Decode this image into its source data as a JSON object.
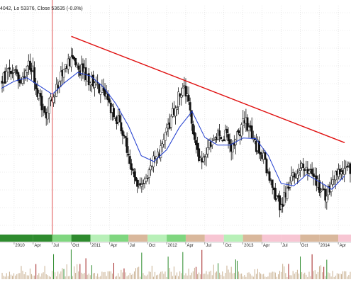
{
  "header": {
    "ohlc_label": "4042, Lo 53376, Close 53635 (-0.8%)"
  },
  "colors": {
    "background": "#ffffff",
    "grid": "#d9d9d9",
    "candle_up": "#1a7a1a",
    "candle_down": "#8b1a1a",
    "moving_average": "#1f3ccf",
    "trendline": "#e01010",
    "marker_line": "#e05050",
    "volume_up": "#2a8a2a",
    "volume_down": "#a02020",
    "volume_neutral": "#c8b090"
  },
  "chart_data": {
    "type": "candlestick",
    "x_tick_labels": [
      "2010",
      "Apr",
      "Jul",
      "Oct",
      "2011",
      "Apr",
      "Jul",
      "Oct",
      "2012",
      "Apr",
      "Jul",
      "Oct",
      "2013",
      "Apr",
      "Jul",
      "Oct",
      "2014",
      "Apr"
    ],
    "x_ticks": [
      "2010-01",
      "2010-04",
      "2010-07",
      "2010-10",
      "2011-01",
      "2011-04",
      "2011-07",
      "2011-10",
      "2012-01",
      "2012-04",
      "2012-07",
      "2012-10",
      "2013-01",
      "2013-04",
      "2013-07",
      "2013-10",
      "2014-01",
      "2014-04"
    ],
    "period": {
      "start": "2009-11",
      "end": "2014-05"
    },
    "price_series": [
      [
        "2009-11",
        68.4
      ],
      [
        "2009-12",
        69.6
      ],
      [
        "2010-01",
        70.5
      ],
      [
        "2010-02",
        68.5
      ],
      [
        "2010-03",
        71.2
      ],
      [
        "2010-04",
        70.0
      ],
      [
        "2010-05",
        65.0
      ],
      [
        "2010-06",
        63.2
      ],
      [
        "2010-07",
        66.0
      ],
      [
        "2010-08",
        68.0
      ],
      [
        "2010-09",
        70.3
      ],
      [
        "2010-10",
        72.5
      ],
      [
        "2010-11",
        70.8
      ],
      [
        "2010-12",
        69.5
      ],
      [
        "2011-01",
        68.4
      ],
      [
        "2011-02",
        68.2
      ],
      [
        "2011-03",
        65.9
      ],
      [
        "2011-04",
        64.4
      ],
      [
        "2011-05",
        62.3
      ],
      [
        "2011-06",
        60.2
      ],
      [
        "2011-07",
        56.4
      ],
      [
        "2011-08",
        52.2
      ],
      [
        "2011-09",
        51.0
      ],
      [
        "2011-10",
        52.9
      ],
      [
        "2011-11",
        56.0
      ],
      [
        "2011-12",
        56.8
      ],
      [
        "2012-01",
        59.5
      ],
      [
        "2012-02",
        63.0
      ],
      [
        "2012-03",
        66.2
      ],
      [
        "2012-04",
        67.0
      ],
      [
        "2012-05",
        61.6
      ],
      [
        "2012-06",
        55.7
      ],
      [
        "2012-07",
        55.5
      ],
      [
        "2012-08",
        58.0
      ],
      [
        "2012-09",
        59.6
      ],
      [
        "2012-10",
        59.5
      ],
      [
        "2012-11",
        57.3
      ],
      [
        "2012-12",
        58.6
      ],
      [
        "2013-01",
        61.7
      ],
      [
        "2013-02",
        60.4
      ],
      [
        "2013-03",
        57.8
      ],
      [
        "2013-04",
        56.1
      ],
      [
        "2013-05",
        52.3
      ],
      [
        "2013-06",
        48.5
      ],
      [
        "2013-07",
        47.6
      ],
      [
        "2013-08",
        50.0
      ],
      [
        "2013-09",
        52.2
      ],
      [
        "2013-10",
        54.1
      ],
      [
        "2013-11",
        53.5
      ],
      [
        "2013-12",
        51.8
      ],
      [
        "2014-01",
        50.6
      ],
      [
        "2014-02",
        49.3
      ],
      [
        "2014-03",
        51.5
      ],
      [
        "2014-04",
        53.4
      ],
      [
        "2014-05",
        53.6
      ]
    ],
    "moving_average": [
      [
        "2009-11",
        67.2
      ],
      [
        "2010-01",
        68.4
      ],
      [
        "2010-03",
        69.0
      ],
      [
        "2010-05",
        67.6
      ],
      [
        "2010-07",
        66.2
      ],
      [
        "2010-09",
        68.2
      ],
      [
        "2010-11",
        69.9
      ],
      [
        "2011-01",
        69.3
      ],
      [
        "2011-03",
        67.5
      ],
      [
        "2011-05",
        64.6
      ],
      [
        "2011-07",
        60.8
      ],
      [
        "2011-09",
        55.8
      ],
      [
        "2011-11",
        54.8
      ],
      [
        "2012-01",
        56.8
      ],
      [
        "2012-03",
        60.6
      ],
      [
        "2012-05",
        63.3
      ],
      [
        "2012-07",
        58.9
      ],
      [
        "2012-09",
        57.6
      ],
      [
        "2012-11",
        57.6
      ],
      [
        "2013-01",
        58.8
      ],
      [
        "2013-03",
        58.7
      ],
      [
        "2013-05",
        55.8
      ],
      [
        "2013-07",
        51.1
      ],
      [
        "2013-09",
        50.7
      ],
      [
        "2013-11",
        52.6
      ],
      [
        "2014-01",
        51.4
      ],
      [
        "2014-03",
        50.1
      ],
      [
        "2014-05",
        52.4
      ]
    ],
    "trendline": [
      [
        "2010-10",
        76.0
      ],
      [
        "2014-05",
        58.0
      ]
    ],
    "vertical_marker": "2010-07",
    "y_range": [
      44,
      80
    ],
    "grid": true,
    "volume_panel": true
  }
}
